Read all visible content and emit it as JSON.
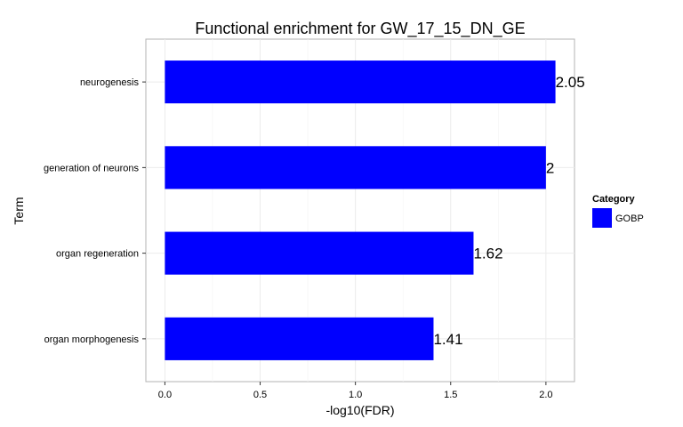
{
  "chart_data": {
    "type": "bar",
    "orientation": "horizontal",
    "title": "Functional enrichment for GW_17_15_DN_GE",
    "xlabel": "-log10(FDR)",
    "ylabel": "Term",
    "categories": [
      "neurogenesis",
      "generation of neurons",
      "organ regeneration",
      "organ morphogenesis"
    ],
    "values": [
      2.05,
      2.0,
      1.62,
      1.41
    ],
    "data_labels": [
      "2.05",
      "2",
      "1.62",
      "1.41"
    ],
    "xticks": [
      0,
      0.5,
      1,
      1.5,
      2
    ],
    "xtick_labels": [
      "0.0",
      "0.5",
      "1.0",
      "1.5",
      "2.0"
    ],
    "xlim": [
      -0.1,
      2.15
    ],
    "grid": true,
    "legend": {
      "title": "Category",
      "entries": [
        {
          "label": "GOBP",
          "color": "#0000ff"
        }
      ],
      "placement": "right"
    },
    "bar_color": "#0000ff"
  }
}
